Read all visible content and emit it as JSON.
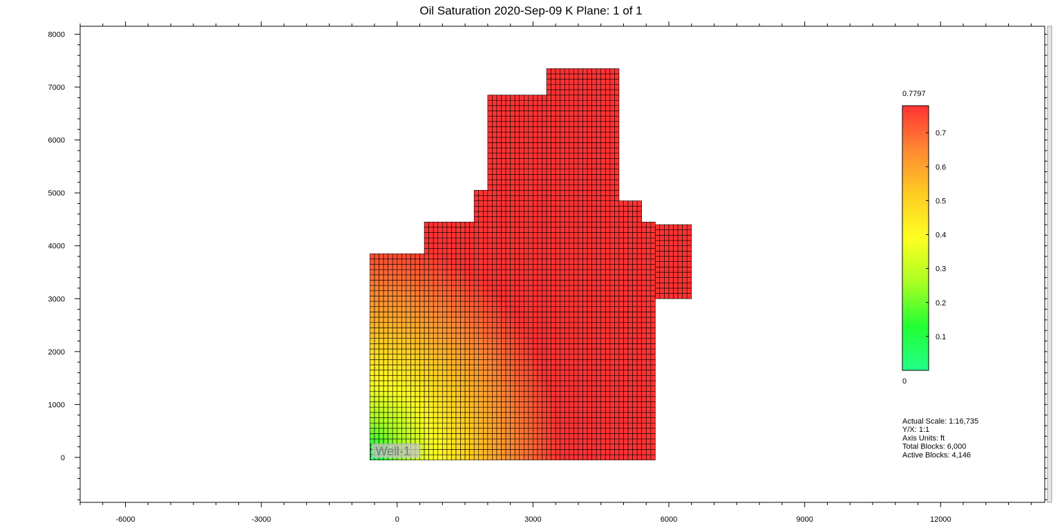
{
  "title": "Oil Saturation  2020-Sep-09   K Plane: 1 of 1",
  "chart_data": {
    "type": "heatmap",
    "title": "Oil Saturation  2020-Sep-09   K Plane: 1 of 1",
    "date": "2020-Sep-09",
    "k_plane": "1 of 1",
    "xlim": [
      -7000,
      14300
    ],
    "ylim": [
      -850,
      8150
    ],
    "x_ticks": [
      -6000,
      -3000,
      0,
      3000,
      6000,
      9000,
      12000
    ],
    "y_ticks": [
      0,
      1000,
      2000,
      3000,
      4000,
      5000,
      6000,
      7000,
      8000
    ],
    "grid_cell_size": [
      100,
      100
    ],
    "grid_region": [
      {
        "x": [
          -600,
          600
        ],
        "y": [
          -50,
          3800
        ]
      },
      {
        "x": [
          600,
          1700
        ],
        "y": [
          -50,
          4400
        ]
      },
      {
        "x": [
          1700,
          2000
        ],
        "y": [
          -50,
          5050
        ]
      },
      {
        "x": [
          2000,
          3300
        ],
        "y": [
          -50,
          6850
        ]
      },
      {
        "x": [
          3300,
          4900
        ],
        "y": [
          -50,
          7350
        ]
      },
      {
        "x": [
          4900,
          5400
        ],
        "y": [
          -50,
          4850
        ]
      },
      {
        "x": [
          5400,
          5700
        ],
        "y": [
          -50,
          4400
        ]
      },
      {
        "x": [
          5700,
          6500
        ],
        "y": [
          3000,
          4400
        ]
      }
    ],
    "value_model": {
      "well_xy": [
        -600,
        -50
      ],
      "min_value": 0,
      "max_value": 0.7797,
      "radius": 4200
    },
    "colorbar": {
      "max_label": "0.7797",
      "min_label": "0",
      "ticks": [
        "0.7",
        "0.6",
        "0.5",
        "0.4",
        "0.3",
        "0.2",
        "0.1"
      ],
      "tick_values": [
        0.7,
        0.6,
        0.5,
        0.4,
        0.3,
        0.2,
        0.1
      ],
      "min": 0,
      "max": 0.7797,
      "colors": [
        "#22ff88",
        "#22ff33",
        "#aaff22",
        "#ffff22",
        "#ffcc22",
        "#ff8833",
        "#ff3333"
      ]
    },
    "wells": [
      {
        "name": "Well-1",
        "x": -600,
        "y": -50
      }
    ]
  },
  "info": {
    "lines": [
      "Actual Scale: 1:16,735",
      "Y/X: 1:1",
      "Axis Units: ft",
      "Total Blocks: 6,000",
      "Active Blocks: 4,146"
    ]
  }
}
